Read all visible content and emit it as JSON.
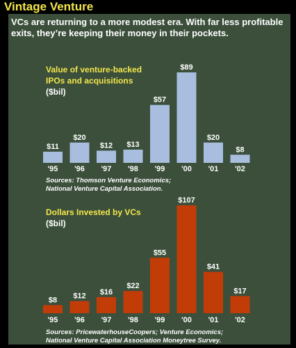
{
  "title": "Vintage Venture",
  "intro": "VCs are returning to a more modest era. With far less profitable exits, they’re keeping their money in their pockets.",
  "colors": {
    "background": "#3b4f3b",
    "title": "#f4e64b",
    "bar1": "#a9bede",
    "bar2": "#c23c08"
  },
  "chart_data": [
    {
      "type": "bar",
      "title_lines": [
        "Value of venture-backed",
        "IPOs and acquisitions"
      ],
      "unit": "($bil)",
      "categories": [
        "'95",
        "'96",
        "'97",
        "'98",
        "'99",
        "'00",
        "'01",
        "'02"
      ],
      "values": [
        11,
        20,
        12,
        13,
        57,
        89,
        20,
        8
      ],
      "value_labels": [
        "$11",
        "$20",
        "$12",
        "$13",
        "$57",
        "$89",
        "$20",
        "$8"
      ],
      "ylim": [
        0,
        89
      ],
      "source": [
        "Sources: Thomson Venture Economics;",
        "National Venture Capital Association."
      ]
    },
    {
      "type": "bar",
      "title_lines": [
        "Dollars Invested by VCs"
      ],
      "unit": "($bil)",
      "categories": [
        "'95",
        "'96",
        "'97",
        "'98",
        "'99",
        "'00",
        "'01",
        "'02"
      ],
      "values": [
        8,
        12,
        16,
        22,
        55,
        107,
        41,
        17
      ],
      "value_labels": [
        "$8",
        "$12",
        "$16",
        "$22",
        "$55",
        "$107",
        "$41",
        "$17"
      ],
      "ylim": [
        0,
        107
      ],
      "source": [
        "Sources: PricewaterhouseCoopers; Venture Economics;",
        "National Venture Capital Association Moneytree Survey."
      ]
    }
  ]
}
